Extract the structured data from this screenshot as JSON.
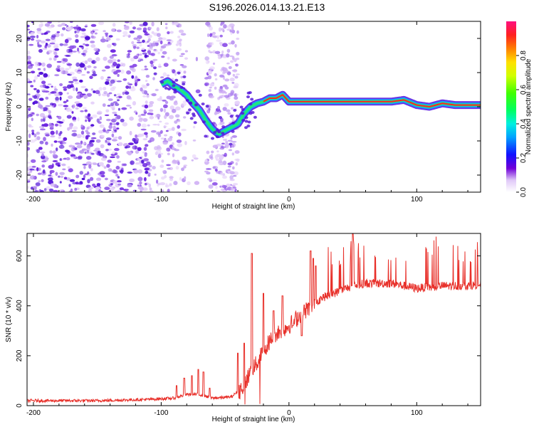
{
  "title": "S196.2026.014.13.21.E13",
  "colors": {
    "snr_line": "#e8302a",
    "spectro_low": "#c8a0f0",
    "spectro_mid": "#5010e0",
    "ridge": "#ff2020"
  },
  "chart_data": [
    {
      "type": "heatmap",
      "name": "spectrogram",
      "xlabel": "Height of straight line (km)",
      "ylabel": "Frequency (Hz)",
      "xlim": [
        -205,
        150
      ],
      "ylim": [
        -25,
        25
      ],
      "xticks": [
        -200,
        -100,
        0,
        100
      ],
      "yticks": [
        -20,
        -10,
        0,
        10,
        20
      ],
      "x_tick_labels": [
        "-200",
        "-100",
        "0",
        "100"
      ],
      "y_tick_labels": [
        "-20",
        "-10",
        "0",
        "10",
        "20"
      ],
      "colorbar": {
        "label": "Normalized spectral amplitude",
        "range": [
          0,
          1
        ],
        "ticks": [
          0.0,
          0.2,
          0.4,
          0.6,
          0.8
        ],
        "tick_labels": [
          "0.0",
          "0.2",
          "0.4",
          "0.6",
          "0.8"
        ]
      },
      "ridge": {
        "x": [
          -100,
          -95,
          -90,
          -85,
          -80,
          -75,
          -70,
          -65,
          -60,
          -55,
          -50,
          -45,
          -40,
          -35,
          -30,
          -25,
          -20,
          -15,
          -10,
          -5,
          0,
          10,
          20,
          40,
          60,
          80,
          90,
          100,
          110,
          120,
          130,
          150
        ],
        "y": [
          6.5,
          7.5,
          6,
          5,
          3.5,
          1,
          -1,
          -4,
          -6.5,
          -8,
          -7,
          -6,
          -5,
          -2,
          0,
          1,
          1.5,
          2.5,
          2.5,
          3.5,
          1.5,
          1.5,
          1.5,
          1.5,
          1.5,
          1.5,
          2,
          0.5,
          0,
          1,
          0.5,
          0.5
        ]
      }
    },
    {
      "type": "line",
      "name": "snr",
      "xlabel": "Height of straight line (km)",
      "ylabel": "SNR (10 * v/v)",
      "xlim": [
        -205,
        150
      ],
      "ylim": [
        0,
        690
      ],
      "xticks": [
        -200,
        -100,
        0,
        100
      ],
      "yticks": [
        0,
        200,
        400,
        600
      ],
      "x_tick_labels": [
        "-200",
        "-100",
        "0",
        "100"
      ],
      "y_tick_labels": [
        "0",
        "200",
        "400",
        "600"
      ],
      "baseline": {
        "x": [
          -205,
          -150,
          -110,
          -90,
          -80,
          -70,
          -60,
          -45,
          -35,
          -30,
          -25,
          -20,
          -15,
          -10,
          0,
          10,
          20,
          25,
          30,
          40,
          50,
          60,
          80,
          100,
          120,
          140,
          150
        ],
        "y": [
          20,
          20,
          25,
          30,
          45,
          45,
          30,
          35,
          80,
          140,
          170,
          220,
          260,
          290,
          320,
          370,
          410,
          430,
          440,
          460,
          480,
          490,
          490,
          470,
          480,
          480,
          485
        ]
      },
      "spikes": {
        "x": [
          -88,
          -82,
          -76,
          -71,
          -67,
          -62,
          -40,
          -35,
          -29,
          -20,
          -12,
          -5,
          3,
          10,
          17,
          19,
          21,
          50
        ],
        "y": [
          80,
          110,
          120,
          145,
          135,
          70,
          210,
          250,
          610,
          450,
          380,
          440,
          320,
          280,
          620,
          590,
          560,
          690
        ]
      }
    }
  ]
}
